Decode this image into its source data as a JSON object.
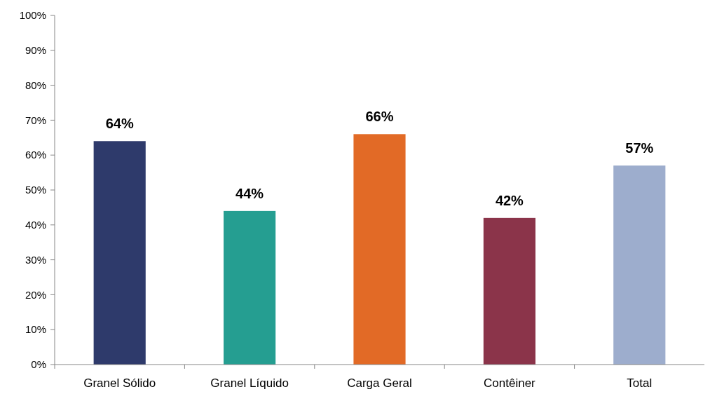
{
  "chart_data": {
    "type": "bar",
    "categories": [
      "Granel Sólido",
      "Granel Líquido",
      "Carga Geral",
      "Contêiner",
      "Total"
    ],
    "values": [
      64,
      44,
      66,
      42,
      57
    ],
    "colors": [
      "#2e3a6b",
      "#259e91",
      "#e26a26",
      "#8b344a",
      "#9dadcd"
    ],
    "value_labels": [
      "64%",
      "44%",
      "66%",
      "42%",
      "57%"
    ],
    "ylim": [
      0,
      100
    ],
    "yticks": [
      {
        "value": 0,
        "label": "0%"
      },
      {
        "value": 10,
        "label": "10%"
      },
      {
        "value": 20,
        "label": "20%"
      },
      {
        "value": 30,
        "label": "30%"
      },
      {
        "value": 40,
        "label": "40%"
      },
      {
        "value": 50,
        "label": "50%"
      },
      {
        "value": 60,
        "label": "60%"
      },
      {
        "value": 70,
        "label": "70%"
      },
      {
        "value": 80,
        "label": "80%"
      },
      {
        "value": 90,
        "label": "90%"
      },
      {
        "value": 100,
        "label": "100%"
      }
    ],
    "grid": false
  }
}
